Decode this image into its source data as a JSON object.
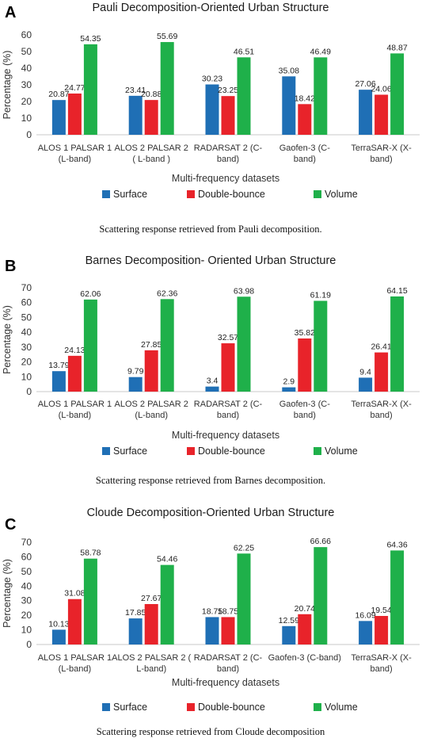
{
  "colors": {
    "surface": "#1f6fb5",
    "double_bounce": "#e8232a",
    "volume": "#1fb04a"
  },
  "chart_data": [
    {
      "panel": "A",
      "type": "bar",
      "title": "Pauli Decomposition-Oriented Urban Structure",
      "xlabel": "Multi-frequency datasets",
      "ylabel": "Percentage (%)",
      "ylim": [
        0,
        60
      ],
      "yticks": [
        0,
        10,
        20,
        30,
        40,
        50,
        60
      ],
      "categories": [
        [
          "ALOS 1 PALSAR 1",
          "(L-band)"
        ],
        [
          "ALOS 2 PALSAR 2",
          "( L-band )"
        ],
        [
          "RADARSAT 2 (C-",
          "band)"
        ],
        [
          "Gaofen-3 (C-",
          "band)"
        ],
        [
          "TerraSAR-X (X-",
          "band)"
        ]
      ],
      "series": [
        {
          "name": "Surface",
          "values": [
            20.87,
            23.41,
            30.23,
            35.08,
            27.06
          ],
          "labels": [
            "20.87",
            "23.41",
            "30.23",
            "35.08",
            "27.06"
          ]
        },
        {
          "name": "Double-bounce",
          "values": [
            24.77,
            20.88,
            23.25,
            18.42,
            24.06
          ],
          "labels": [
            "24.77",
            "20.88",
            "23.25",
            "18.42",
            "24.06"
          ]
        },
        {
          "name": "Volume",
          "values": [
            54.35,
            55.69,
            46.51,
            46.49,
            48.87
          ],
          "labels": [
            "54.35",
            "55.69",
            "46.51",
            "46.49",
            "48.87"
          ]
        }
      ],
      "legend": "bottom",
      "caption": "Scattering response retrieved from Pauli decomposition."
    },
    {
      "panel": "B",
      "type": "bar",
      "title": "Barnes Decomposition- Oriented Urban Structure",
      "xlabel": "Multi-frequency datasets",
      "ylabel": "Percentage (%)",
      "ylim": [
        0,
        70
      ],
      "yticks": [
        0,
        10,
        20,
        30,
        40,
        50,
        60,
        70
      ],
      "categories": [
        [
          "ALOS 1 PALSAR 1",
          "(L-band)"
        ],
        [
          "ALOS 2 PALSAR 2",
          "(L-band)"
        ],
        [
          "RADARSAT 2 (C-",
          "band)"
        ],
        [
          "Gaofen-3 (C-",
          "band)"
        ],
        [
          "TerraSAR-X (X-",
          "band)"
        ]
      ],
      "series": [
        {
          "name": "Surface",
          "values": [
            13.79,
            9.79,
            3.4,
            2.9,
            9.4
          ],
          "labels": [
            "13.79",
            "9.79",
            "3.4",
            "2.9",
            "9.4"
          ]
        },
        {
          "name": "Double-bounce",
          "values": [
            24.13,
            27.85,
            32.57,
            35.82,
            26.41
          ],
          "labels": [
            "24.13",
            "27.85",
            "32.57",
            "35.82",
            "26.41"
          ]
        },
        {
          "name": "Volume",
          "values": [
            62.06,
            62.36,
            63.98,
            61.19,
            64.15
          ],
          "labels": [
            "62.06",
            "62.36",
            "63.98",
            "61.19",
            "64.15"
          ]
        }
      ],
      "legend": "bottom",
      "caption": "Scattering response retrieved from Barnes decomposition."
    },
    {
      "panel": "C",
      "type": "bar",
      "title": "Cloude Decomposition-Oriented Urban Structure",
      "xlabel": "Multi-frequency datasets",
      "ylabel": "Percentage (%)",
      "ylim": [
        0,
        70
      ],
      "yticks": [
        0,
        10,
        20,
        30,
        40,
        50,
        60,
        70
      ],
      "categories": [
        [
          "ALOS 1 PALSAR 1",
          "(L-band)"
        ],
        [
          "ALOS 2 PALSAR 2 (",
          "L-band)"
        ],
        [
          "RADARSAT 2 (C-",
          "band)"
        ],
        [
          "Gaofen-3 (C-band)"
        ],
        [
          "TerraSAR-X (X-",
          "band)"
        ]
      ],
      "series": [
        {
          "name": "Surface",
          "values": [
            10.13,
            17.85,
            18.75,
            12.59,
            16.09
          ],
          "labels": [
            "10.13",
            "17.85",
            "18.75",
            "12.59",
            "16.09"
          ]
        },
        {
          "name": "Double-bounce",
          "values": [
            31.08,
            27.67,
            18.75,
            20.74,
            19.54
          ],
          "labels": [
            "31.08",
            "27.67",
            "18.75",
            "20.74",
            "19.54"
          ]
        },
        {
          "name": "Volume",
          "values": [
            58.78,
            54.46,
            62.25,
            66.66,
            64.36
          ],
          "labels": [
            "58.78",
            "54.46",
            "62.25",
            "66.66",
            "64.36"
          ]
        }
      ],
      "legend": "bottom",
      "caption": "Scattering response retrieved from Cloude decomposition"
    }
  ]
}
